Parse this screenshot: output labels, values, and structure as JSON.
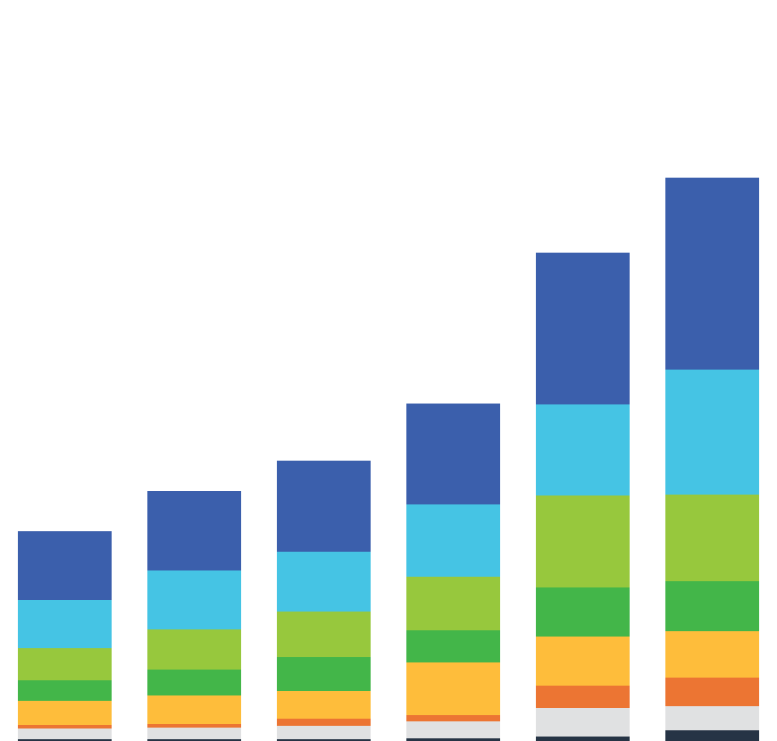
{
  "chart_data": {
    "type": "bar",
    "stacked": true,
    "title": "",
    "xlabel": "",
    "ylabel": "",
    "categories": [
      "",
      "",
      "",
      "",
      "",
      ""
    ],
    "ylim": [
      0,
      830
    ],
    "grid": false,
    "legend": "none",
    "series": [
      {
        "color": "#263445",
        "values": [
          2,
          2,
          2,
          3,
          5,
          12
        ]
      },
      {
        "color": "#e0e1e2",
        "values": [
          12,
          13,
          15,
          19,
          32,
          27
        ]
      },
      {
        "color": "#ec7533",
        "values": [
          4,
          4,
          8,
          7,
          25,
          32
        ]
      },
      {
        "color": "#febd3b",
        "values": [
          27,
          32,
          31,
          59,
          55,
          52
        ]
      },
      {
        "color": "#43b649",
        "values": [
          23,
          29,
          38,
          36,
          55,
          56
        ]
      },
      {
        "color": "#97c83d",
        "values": [
          36,
          45,
          51,
          60,
          103,
          97
        ]
      },
      {
        "color": "#45c4e4",
        "values": [
          54,
          66,
          67,
          81,
          102,
          140
        ]
      },
      {
        "color": "#3b5fac",
        "values": [
          77,
          89,
          102,
          113,
          170,
          215
        ]
      }
    ]
  }
}
